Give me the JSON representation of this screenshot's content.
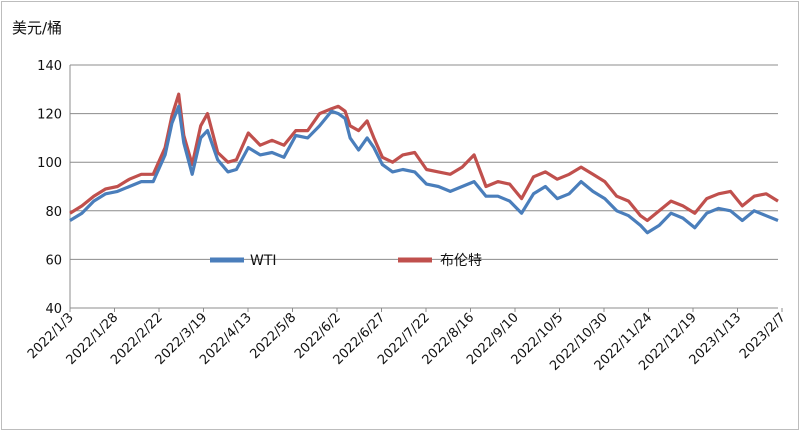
{
  "chart_data": {
    "type": "line",
    "unit_label": "美元/桶",
    "title": "",
    "xlabel": "",
    "ylabel": "美元/桶",
    "ylim": [
      40,
      140
    ],
    "yticks": [
      40,
      60,
      80,
      100,
      120,
      140
    ],
    "x_tick_labels": [
      "2022/1/3",
      "2022/1/28",
      "2022/2/22",
      "2022/3/19",
      "2022/4/13",
      "2022/5/8",
      "2022/6/2",
      "2022/6/27",
      "2022/7/22",
      "2022/8/16",
      "2022/9/10",
      "2022/10/5",
      "2022/10/30",
      "2022/11/24",
      "2022/12/19",
      "2023/1/13",
      "2023/2/7"
    ],
    "grid": "horizontal",
    "legend_position": "inside-bottom",
    "x": [
      "2022-01-03",
      "2022-01-10",
      "2022-01-17",
      "2022-01-24",
      "2022-01-31",
      "2022-02-07",
      "2022-02-14",
      "2022-02-21",
      "2022-02-28",
      "2022-03-04",
      "2022-03-08",
      "2022-03-11",
      "2022-03-16",
      "2022-03-21",
      "2022-03-25",
      "2022-03-31",
      "2022-04-06",
      "2022-04-11",
      "2022-04-18",
      "2022-04-25",
      "2022-05-02",
      "2022-05-09",
      "2022-05-16",
      "2022-05-23",
      "2022-05-30",
      "2022-06-06",
      "2022-06-10",
      "2022-06-14",
      "2022-06-17",
      "2022-06-22",
      "2022-06-27",
      "2022-07-01",
      "2022-07-06",
      "2022-07-12",
      "2022-07-18",
      "2022-07-25",
      "2022-08-01",
      "2022-08-08",
      "2022-08-15",
      "2022-08-22",
      "2022-08-29",
      "2022-09-05",
      "2022-09-12",
      "2022-09-19",
      "2022-09-26",
      "2022-10-03",
      "2022-10-10",
      "2022-10-17",
      "2022-10-24",
      "2022-10-31",
      "2022-11-07",
      "2022-11-14",
      "2022-11-21",
      "2022-11-28",
      "2022-12-05",
      "2022-12-09",
      "2022-12-16",
      "2022-12-23",
      "2022-12-30",
      "2023-01-06",
      "2023-01-13",
      "2023-01-20",
      "2023-01-27",
      "2023-02-03",
      "2023-02-10",
      "2023-02-17",
      "2023-02-24"
    ],
    "series": [
      {
        "name": "WTI",
        "color": "#4a7ebb",
        "values": [
          76,
          79,
          84,
          87,
          88,
          90,
          92,
          92,
          103,
          116,
          123,
          108,
          95,
          110,
          113,
          101,
          96,
          97,
          106,
          103,
          104,
          102,
          111,
          110,
          115,
          121,
          120,
          118,
          110,
          105,
          110,
          106,
          99,
          96,
          97,
          96,
          91,
          90,
          88,
          90,
          92,
          86,
          86,
          84,
          79,
          87,
          90,
          85,
          87,
          92,
          88,
          85,
          80,
          78,
          74,
          71,
          74,
          79,
          77,
          73,
          79,
          81,
          80,
          76,
          80,
          78,
          76
        ]
      },
      {
        "name": "布伦特",
        "color": "#c0504d",
        "values": [
          79,
          82,
          86,
          89,
          90,
          93,
          95,
          95,
          106,
          119,
          128,
          111,
          99,
          115,
          120,
          104,
          100,
          101,
          112,
          107,
          109,
          107,
          113,
          113,
          120,
          122,
          123,
          121,
          115,
          113,
          117,
          110,
          102,
          100,
          103,
          104,
          97,
          96,
          95,
          98,
          103,
          90,
          92,
          91,
          85,
          94,
          96,
          93,
          95,
          98,
          95,
          92,
          86,
          84,
          78,
          76,
          80,
          84,
          82,
          79,
          85,
          87,
          88,
          82,
          86,
          87,
          84
        ]
      }
    ]
  }
}
